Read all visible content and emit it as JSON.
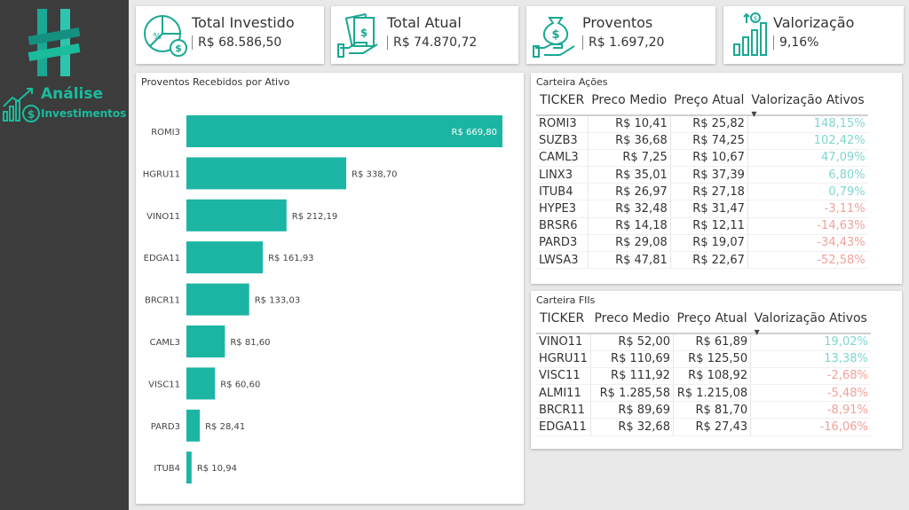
{
  "brand": {
    "line1": "Análise",
    "line2": "Investimentos",
    "accent": "#1abc9c"
  },
  "kpis": [
    {
      "label": "Total Investido",
      "value": "R$ 68.586,50",
      "icon": "pie-chart-money-icon"
    },
    {
      "label": "Total Atual",
      "value": "R$ 74.870,72",
      "icon": "cash-hand-icon"
    },
    {
      "label": "Proventos",
      "value": "R$ 1.697,20",
      "icon": "money-bag-hand-icon"
    },
    {
      "label": "Valorização",
      "value": "9,16%",
      "icon": "growth-bars-icon"
    }
  ],
  "chart_data": {
    "type": "bar",
    "orientation": "horizontal",
    "title": "Proventos Recebidos por Ativo",
    "categories": [
      "ROMI3",
      "HGRU11",
      "VINO11",
      "EDGA11",
      "BRCR11",
      "CAML3",
      "VISC11",
      "PARD3",
      "ITUB4"
    ],
    "values": [
      669.8,
      338.7,
      212.19,
      161.93,
      133.03,
      81.6,
      60.6,
      28.41,
      10.94
    ],
    "labels": [
      "R$ 669,80",
      "R$ 338,70",
      "R$ 212,19",
      "R$ 161,93",
      "R$ 133,03",
      "R$ 81,60",
      "R$ 60,60",
      "R$ 28,41",
      "R$ 10,94"
    ],
    "xlim": [
      0,
      669.8
    ],
    "color": "#1cb5a3",
    "grid": false
  },
  "acoes": {
    "title": "Carteira Ações",
    "columns": [
      "TICKER",
      "Preco Medio",
      "Preço Atual",
      "Valorização Ativos"
    ],
    "rows": [
      [
        "ROMI3",
        "R$ 10,41",
        "R$ 25,82",
        "148,15%"
      ],
      [
        "SUZB3",
        "R$ 36,68",
        "R$ 74,25",
        "102,42%"
      ],
      [
        "CAML3",
        "R$ 7,25",
        "R$ 10,67",
        "47,09%"
      ],
      [
        "LINX3",
        "R$ 35,01",
        "R$ 37,39",
        "6,80%"
      ],
      [
        "ITUB4",
        "R$ 26,97",
        "R$ 27,18",
        "0,79%"
      ],
      [
        "HYPE3",
        "R$ 32,48",
        "R$ 31,47",
        "-3,11%"
      ],
      [
        "BRSR6",
        "R$ 14,18",
        "R$ 12,11",
        "-14,63%"
      ],
      [
        "PARD3",
        "R$ 29,08",
        "R$ 19,07",
        "-34,43%"
      ],
      [
        "LWSA3",
        "R$ 47,81",
        "R$ 22,67",
        "-52,58%"
      ]
    ]
  },
  "fiis": {
    "title": "Carteira FIIs",
    "columns": [
      "TICKER",
      "Preco Medio",
      "Preço Atual",
      "Valorização Ativos"
    ],
    "rows": [
      [
        "VINO11",
        "R$ 52,00",
        "R$ 61,89",
        "19,02%"
      ],
      [
        "HGRU11",
        "R$ 110,69",
        "R$ 125,50",
        "13,38%"
      ],
      [
        "VISC11",
        "R$ 111,92",
        "R$ 108,92",
        "-2,68%"
      ],
      [
        "ALMI11",
        "R$ 1.285,58",
        "R$ 1.215,08",
        "-5,48%"
      ],
      [
        "BRCR11",
        "R$ 89,69",
        "R$ 81,70",
        "-8,91%"
      ],
      [
        "EDGA11",
        "R$ 32,68",
        "R$ 27,43",
        "-16,06%"
      ]
    ]
  },
  "colors": {
    "positive": "#7fd6d0",
    "negative": "#f0a29a",
    "sidebar": "#3c3c3c"
  }
}
